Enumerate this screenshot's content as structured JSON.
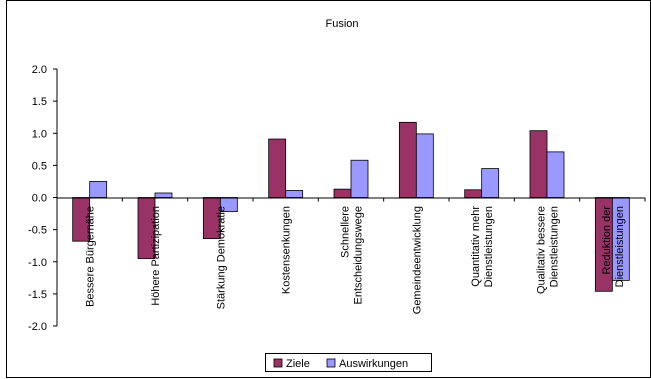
{
  "chart_data": {
    "type": "bar",
    "title": "Fusion",
    "categories": [
      [
        "Bessere Bürgernähe"
      ],
      [
        "Höhere Partizipation"
      ],
      [
        "Stärkung Demokratie"
      ],
      [
        "Kostensenkungen"
      ],
      [
        "Schnellere",
        "Entscheidungswege"
      ],
      [
        "Gemeindeentwicklung"
      ],
      [
        "Quantitativ mehr",
        "Dienstleistungen"
      ],
      [
        "Qualitativ bessere",
        "Dienstleistungen"
      ],
      [
        "Reduktion der",
        "Dienstleistungen"
      ]
    ],
    "series": [
      {
        "name": "Ziele",
        "color": "#993366",
        "values": [
          -0.68,
          -0.95,
          -0.64,
          0.91,
          0.13,
          1.17,
          0.12,
          1.04,
          -1.46
        ]
      },
      {
        "name": "Auswirkungen",
        "color": "#9999ff",
        "values": [
          0.25,
          0.07,
          -0.22,
          0.11,
          0.58,
          0.99,
          0.45,
          0.71,
          -1.29
        ]
      }
    ],
    "ylim": [
      -2.0,
      2.0
    ],
    "yticks": [
      "2.0",
      "1.5",
      "1.0",
      "0.5",
      "0.0",
      "-0.5",
      "-1.0",
      "-1.5",
      "-2.0"
    ],
    "grid": false,
    "legend": "bottom"
  }
}
